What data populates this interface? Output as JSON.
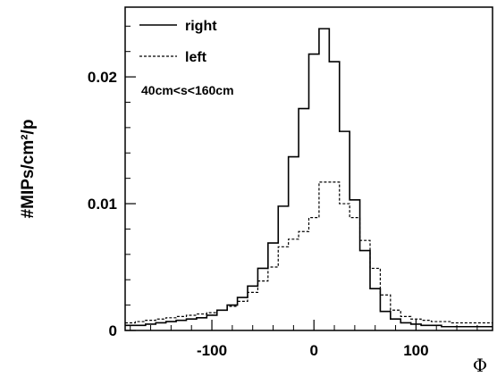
{
  "chart_data": {
    "type": "line",
    "step": true,
    "xlabel": "Φ",
    "ylabel": "#MIPs/cm²/p",
    "xlim": [
      -185,
      175
    ],
    "ylim": [
      0,
      0.0255
    ],
    "x_ticks": [
      -100,
      0,
      100
    ],
    "x_tick_labels": [
      "-100",
      "0",
      "100"
    ],
    "y_ticks": [
      0,
      0.01,
      0.02
    ],
    "y_tick_labels": [
      "0",
      "0.01",
      "0.02"
    ],
    "grid": false,
    "legend_position": "top-left",
    "annotation": "40cm<s<160cm",
    "bin_edges": [
      -185,
      -175,
      -165,
      -155,
      -145,
      -135,
      -125,
      -115,
      -105,
      -95,
      -85,
      -75,
      -65,
      -55,
      -45,
      -35,
      -25,
      -15,
      -5,
      5,
      15,
      25,
      35,
      45,
      55,
      65,
      75,
      85,
      95,
      105,
      115,
      125,
      135,
      145,
      155,
      165,
      175
    ],
    "series": [
      {
        "name": "right",
        "style": "solid",
        "color": "#000000",
        "values": [
          0.0004,
          0.0004,
          0.0005,
          0.0006,
          0.0007,
          0.0008,
          0.0009,
          0.001,
          0.0012,
          0.0016,
          0.002,
          0.0026,
          0.0035,
          0.0049,
          0.0069,
          0.0098,
          0.0137,
          0.0175,
          0.0218,
          0.0238,
          0.0212,
          0.0157,
          0.0103,
          0.0063,
          0.0033,
          0.0015,
          0.0009,
          0.0006,
          0.0005,
          0.0004,
          0.0004,
          0.0003,
          0.0003,
          0.0003,
          0.0003,
          0.0003
        ]
      },
      {
        "name": "left",
        "style": "dashed",
        "color": "#000000",
        "values": [
          0.0006,
          0.0007,
          0.0008,
          0.0009,
          0.001,
          0.0011,
          0.0012,
          0.0013,
          0.0014,
          0.0016,
          0.0019,
          0.0023,
          0.003,
          0.0039,
          0.005,
          0.0066,
          0.0072,
          0.0078,
          0.0089,
          0.0117,
          0.0117,
          0.01,
          0.0089,
          0.0071,
          0.0049,
          0.0028,
          0.0016,
          0.0011,
          0.0009,
          0.0008,
          0.0007,
          0.0007,
          0.0006,
          0.0006,
          0.0006,
          0.0006
        ]
      }
    ]
  }
}
